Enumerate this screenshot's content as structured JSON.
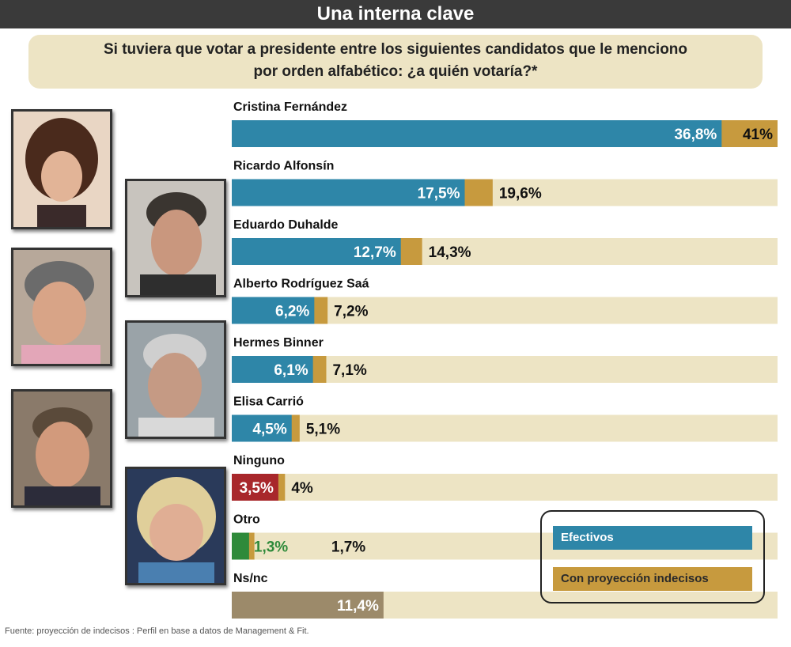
{
  "header": {
    "title": "Una interna clave",
    "question_line1": "Si tuviera que votar a presidente entre los siguientes candidatos que le menciono",
    "question_line2": "por orden alfabético: ¿a quién votaría?*"
  },
  "chart_data": {
    "type": "bar",
    "orientation": "horizontal",
    "categories": [
      "Cristina Fernández",
      "Ricardo Alfonsín",
      "Eduardo Duhalde",
      "Alberto Rodríguez Saá",
      "Hermes Binner",
      "Elisa Carrió",
      "Ninguno",
      "Otro",
      "Ns/nc"
    ],
    "series": [
      {
        "name": "Efectivos",
        "values": [
          36.8,
          17.5,
          12.7,
          6.2,
          6.1,
          4.5,
          3.5,
          1.3,
          11.4
        ]
      },
      {
        "name": "Con proyección indecisos",
        "values": [
          41,
          19.6,
          14.3,
          7.2,
          7.1,
          5.1,
          4,
          1.7,
          null
        ]
      }
    ],
    "labels_efectivos": [
      "36,8%",
      "17,5%",
      "12,7%",
      "6,2%",
      "6,1%",
      "4,5%",
      "3,5%",
      "1,3%",
      "11,4%"
    ],
    "labels_proyeccion": [
      "41%",
      "19,6%",
      "14,3%",
      "7,2%",
      "7,1%",
      "5,1%",
      "4%",
      "1,7%",
      ""
    ],
    "xlim": [
      0,
      41
    ],
    "colors": {
      "efectivos": "#2e86a8",
      "proyeccion": "#c79a3e",
      "track": "#ede4c4",
      "ninguno": "#a8272b",
      "otro": "#2e8a3a",
      "nsnc": "#9c8a6a"
    },
    "legend_placement": "bottom-right"
  },
  "legend": {
    "efectivos": "Efectivos",
    "proyeccion": "Con proyección indecisos"
  },
  "source": "Fuente: proyección de indecisos : Perfil en base a datos de Management & Fit."
}
